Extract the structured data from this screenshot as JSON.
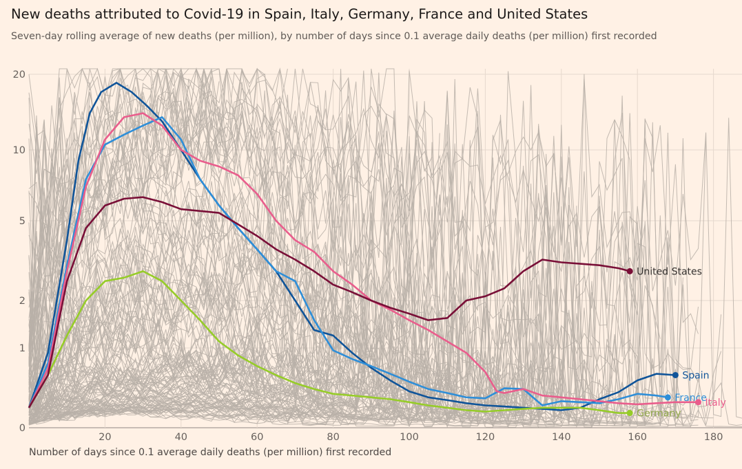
{
  "header": {
    "title": "New deaths attributed to Covid-19 in Spain, Italy, Germany, France and United States",
    "subtitle": "Seven-day rolling average of new deaths (per million), by number of days since 0.1 average daily deaths (per million) first recorded"
  },
  "chart_data": {
    "type": "line",
    "title": "New deaths attributed to Covid-19 in Spain, Italy, Germany, France and United States",
    "subtitle": "Seven-day rolling average of new deaths (per million), by number of days since 0.1 average daily deaths (per million) first recorded",
    "xlabel": "Number of days since 0.1 average daily deaths (per million) first recorded",
    "ylabel": "",
    "y_scale": "log",
    "xlim": [
      0,
      188
    ],
    "x_ticks": [
      20,
      40,
      60,
      80,
      100,
      120,
      140,
      160,
      180
    ],
    "y_ticks": [
      0,
      1,
      2,
      5,
      10,
      20
    ],
    "y_tick_labels": [
      "0",
      "1",
      "2",
      "5",
      "10",
      "20"
    ],
    "grid": true,
    "background_series_color": "#b8b0a8",
    "background_series_note": "Grey lines show other countries",
    "series": [
      {
        "name": "Spain",
        "color": "#0f5499",
        "points": [
          [
            0,
            0.1
          ],
          [
            5,
            0.9
          ],
          [
            10,
            4
          ],
          [
            13,
            9
          ],
          [
            16,
            14
          ],
          [
            19,
            17
          ],
          [
            23,
            18.5
          ],
          [
            27,
            17
          ],
          [
            31,
            15
          ],
          [
            35,
            13
          ],
          [
            40,
            10
          ],
          [
            45,
            7.5
          ],
          [
            50,
            5.8
          ],
          [
            55,
            4.6
          ],
          [
            60,
            3.6
          ],
          [
            65,
            2.8
          ],
          [
            70,
            2
          ],
          [
            75,
            1.3
          ],
          [
            80,
            1.2
          ],
          [
            85,
            0.9
          ],
          [
            90,
            0.62
          ],
          [
            95,
            0.42
          ],
          [
            100,
            0.27
          ],
          [
            105,
            0.2
          ],
          [
            110,
            0.17
          ],
          [
            115,
            0.14
          ],
          [
            120,
            0.12
          ],
          [
            125,
            0.11
          ],
          [
            130,
            0.1
          ],
          [
            135,
            0.09
          ],
          [
            140,
            0.08
          ],
          [
            145,
            0.1
          ],
          [
            150,
            0.18
          ],
          [
            155,
            0.26
          ],
          [
            160,
            0.42
          ],
          [
            165,
            0.52
          ],
          [
            170,
            0.5
          ]
        ]
      },
      {
        "name": "France",
        "color": "#2e8ed8",
        "points": [
          [
            0,
            0.1
          ],
          [
            5,
            0.7
          ],
          [
            10,
            3
          ],
          [
            15,
            7.5
          ],
          [
            20,
            10.5
          ],
          [
            25,
            11.5
          ],
          [
            30,
            12.5
          ],
          [
            35,
            13.5
          ],
          [
            40,
            11
          ],
          [
            45,
            7.5
          ],
          [
            50,
            5.8
          ],
          [
            55,
            4.6
          ],
          [
            60,
            3.6
          ],
          [
            65,
            2.8
          ],
          [
            70,
            2.5
          ],
          [
            75,
            1.5
          ],
          [
            80,
            0.95
          ],
          [
            85,
            0.78
          ],
          [
            90,
            0.65
          ],
          [
            95,
            0.52
          ],
          [
            100,
            0.4
          ],
          [
            105,
            0.3
          ],
          [
            110,
            0.25
          ],
          [
            115,
            0.2
          ],
          [
            120,
            0.19
          ],
          [
            125,
            0.31
          ],
          [
            130,
            0.3
          ],
          [
            135,
            0.12
          ],
          [
            140,
            0.16
          ],
          [
            145,
            0.15
          ],
          [
            150,
            0.14
          ],
          [
            155,
            0.18
          ],
          [
            160,
            0.24
          ],
          [
            165,
            0.22
          ],
          [
            168,
            0.2
          ]
        ]
      },
      {
        "name": "Italy",
        "color": "#e95d8c",
        "points": [
          [
            0,
            0.1
          ],
          [
            5,
            0.6
          ],
          [
            10,
            2.8
          ],
          [
            15,
            7
          ],
          [
            20,
            11
          ],
          [
            25,
            13.5
          ],
          [
            30,
            14
          ],
          [
            35,
            12.5
          ],
          [
            40,
            10
          ],
          [
            45,
            9
          ],
          [
            50,
            8.5
          ],
          [
            55,
            7.8
          ],
          [
            60,
            6.5
          ],
          [
            65,
            5
          ],
          [
            70,
            4
          ],
          [
            75,
            3.5
          ],
          [
            80,
            2.8
          ],
          [
            85,
            2.4
          ],
          [
            90,
            2
          ],
          [
            95,
            1.75
          ],
          [
            100,
            1.5
          ],
          [
            105,
            1.3
          ],
          [
            110,
            1.1
          ],
          [
            115,
            0.9
          ],
          [
            120,
            0.55
          ],
          [
            123,
            0.27
          ],
          [
            125,
            0.25
          ],
          [
            130,
            0.3
          ],
          [
            135,
            0.22
          ],
          [
            140,
            0.2
          ],
          [
            145,
            0.18
          ],
          [
            150,
            0.16
          ],
          [
            155,
            0.14
          ],
          [
            160,
            0.13
          ],
          [
            165,
            0.14
          ],
          [
            170,
            0.15
          ],
          [
            176,
            0.15
          ]
        ]
      },
      {
        "name": "Germany",
        "color": "#96cc28",
        "points": [
          [
            0,
            0.1
          ],
          [
            5,
            0.5
          ],
          [
            10,
            1.2
          ],
          [
            15,
            2
          ],
          [
            20,
            2.5
          ],
          [
            25,
            2.6
          ],
          [
            30,
            2.8
          ],
          [
            35,
            2.5
          ],
          [
            40,
            2
          ],
          [
            45,
            1.5
          ],
          [
            50,
            1.1
          ],
          [
            55,
            0.85
          ],
          [
            60,
            0.65
          ],
          [
            65,
            0.5
          ],
          [
            70,
            0.38
          ],
          [
            75,
            0.3
          ],
          [
            80,
            0.24
          ],
          [
            85,
            0.22
          ],
          [
            90,
            0.2
          ],
          [
            95,
            0.18
          ],
          [
            100,
            0.15
          ],
          [
            105,
            0.12
          ],
          [
            110,
            0.1
          ],
          [
            115,
            0.08
          ],
          [
            120,
            0.07
          ],
          [
            125,
            0.08
          ],
          [
            130,
            0.09
          ],
          [
            135,
            0.1
          ],
          [
            140,
            0.1
          ],
          [
            145,
            0.1
          ],
          [
            150,
            0.08
          ],
          [
            155,
            0.06
          ],
          [
            158,
            0.06
          ]
        ]
      },
      {
        "name": "United States",
        "color": "#790f37",
        "points": [
          [
            0,
            0.1
          ],
          [
            5,
            0.5
          ],
          [
            10,
            2.5
          ],
          [
            15,
            4.6
          ],
          [
            20,
            5.8
          ],
          [
            25,
            6.2
          ],
          [
            30,
            6.3
          ],
          [
            35,
            6
          ],
          [
            40,
            5.6
          ],
          [
            45,
            5.5
          ],
          [
            50,
            5.4
          ],
          [
            55,
            4.8
          ],
          [
            60,
            4.2
          ],
          [
            65,
            3.6
          ],
          [
            70,
            3.2
          ],
          [
            75,
            2.8
          ],
          [
            80,
            2.4
          ],
          [
            85,
            2.2
          ],
          [
            90,
            2
          ],
          [
            95,
            1.8
          ],
          [
            100,
            1.65
          ],
          [
            105,
            1.5
          ],
          [
            110,
            1.55
          ],
          [
            115,
            2
          ],
          [
            120,
            2.1
          ],
          [
            125,
            2.3
          ],
          [
            130,
            2.8
          ],
          [
            135,
            3.2
          ],
          [
            140,
            3.1
          ],
          [
            145,
            3.05
          ],
          [
            150,
            3.0
          ],
          [
            155,
            2.9
          ],
          [
            158,
            2.8
          ]
        ]
      }
    ]
  }
}
